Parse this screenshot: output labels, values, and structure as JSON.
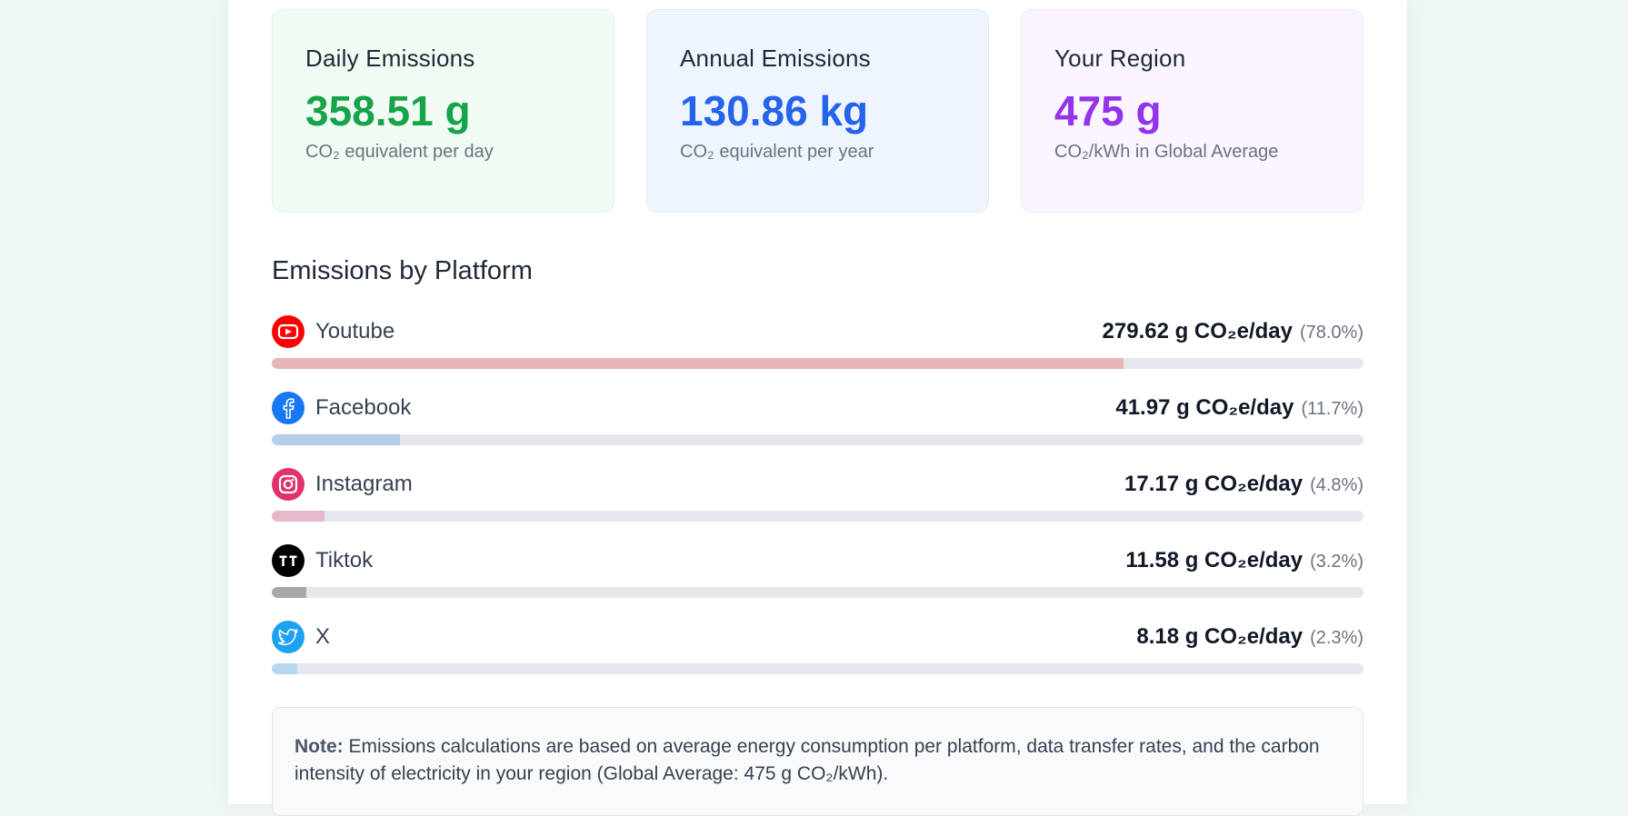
{
  "cards": [
    {
      "title": "Daily Emissions",
      "value": "358.51 g",
      "subtitle": "CO₂ equivalent per day"
    },
    {
      "title": "Annual Emissions",
      "value": "130.86 kg",
      "subtitle": "CO₂ equivalent per year"
    },
    {
      "title": "Your Region",
      "value": "475 g",
      "subtitle": "CO₂/kWh in Global Average"
    }
  ],
  "section": {
    "title": "Emissions by Platform"
  },
  "platforms": [
    {
      "name": "Youtube",
      "value": "279.62 g CO₂e/day",
      "percent_label": "(78.0%)",
      "share": 0.78,
      "icon": "youtube-icon",
      "icon_color": "#ff0000",
      "bar_color": "#e8b4b6"
    },
    {
      "name": "Facebook",
      "value": "41.97 g CO₂e/day",
      "percent_label": "(11.7%)",
      "share": 0.117,
      "icon": "facebook-icon",
      "icon_color": "#1877f2",
      "bar_color": "#b6cde9"
    },
    {
      "name": "Instagram",
      "value": "17.17 g CO₂e/day",
      "percent_label": "(4.8%)",
      "share": 0.048,
      "icon": "instagram-icon",
      "icon_color": "#e1306c",
      "bar_color": "#e6b8cb"
    },
    {
      "name": "Tiktok",
      "value": "11.58 g CO₂e/day",
      "percent_label": "(3.2%)",
      "share": 0.032,
      "icon": "tiktok-icon",
      "icon_color": "#000000",
      "bar_color": "#a8a8a8"
    },
    {
      "name": "X",
      "value": "8.18 g CO₂e/day",
      "percent_label": "(2.3%)",
      "share": 0.023,
      "icon": "twitter-bird-icon",
      "icon_color": "#1da1f2",
      "bar_color": "#b6d8ee"
    }
  ],
  "note": {
    "label": "Note:",
    "text": " Emissions calculations are based on average energy consumption per platform, data transfer rates, and the carbon intensity of electricity in your region (Global Average: 475 g CO₂/kWh)."
  }
}
